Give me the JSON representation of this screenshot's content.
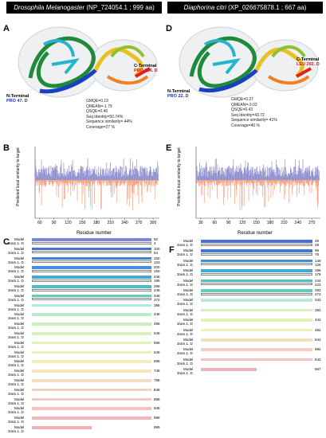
{
  "titles": {
    "left": {
      "organism": "Drosophila Melanogaster",
      "accession": " (NP_724054.1 ; 999 aa)"
    },
    "right": {
      "organism": "Diaphorina citri",
      "accession": " (XP_026675878.1 ; 667 aa)"
    }
  },
  "panels": {
    "A": {
      "letter": "A",
      "n_terminal": "N-Terminal",
      "n_res": "PRO 47. D",
      "c_terminal": "C-Terminal",
      "c_res": "PRO 336. D",
      "stats": [
        "GMQE=0.19",
        "QMEAN=-1.79",
        "QSQE=0.46",
        "Seq Identity=50.74%",
        "Sequence similarity= 44%",
        "Coverage=27 %"
      ]
    },
    "D": {
      "letter": "D",
      "n_terminal": "N-Terminal",
      "n_res": "PRO 22. D",
      "c_terminal": "C-Terminal",
      "c_res": "LEU 292. D",
      "stats": [
        "GMQE=0.27",
        "QMEAN=-3.02",
        "QSQE=0.43",
        "Seq Identity=43.72",
        "Sequence similarity= 41%",
        "Coverage=40 %"
      ]
    },
    "B": {
      "letter": "B",
      "ylabel": "Predicted local similarity to target",
      "xlabel": "Residue number"
    },
    "E": {
      "letter": "E",
      "ylabel": "Predicted local similarity to target",
      "xlabel": "Residue number"
    },
    "C": {
      "letter": "C"
    },
    "F": {
      "letter": "F"
    }
  },
  "chart_data": [
    {
      "type": "bar",
      "panel": "B",
      "xlim": [
        50,
        310
      ],
      "ylim": [
        -1,
        1
      ],
      "xticks": [
        60,
        90,
        120,
        150,
        180,
        210,
        240,
        270,
        300
      ],
      "series": [
        {
          "color": "#8f8fd0"
        },
        {
          "color": "#f0a080"
        }
      ]
    },
    {
      "type": "bar",
      "panel": "E",
      "xlim": [
        20,
        285
      ],
      "ylim": [
        -1,
        1
      ],
      "xticks": [
        30,
        60,
        90,
        120,
        150,
        180,
        210,
        240,
        270
      ],
      "series": [
        {
          "color": "#8f8fd0"
        },
        {
          "color": "#f0a080"
        }
      ]
    }
  ],
  "alignment_C": [
    {
      "row1": "Model",
      "row2": "3ram.1. D",
      "n1": "50",
      "n2": "4",
      "color": "#7a86dc"
    },
    {
      "row1": "Model",
      "row2": "3ram.1. D",
      "n1": "100",
      "n2": "54",
      "color": "#4a6fd8"
    },
    {
      "row1": "Model",
      "row2": "3ram.1. D",
      "n1": "150",
      "n2": "103",
      "color": "#3c7fd6"
    },
    {
      "row1": "Model",
      "row2": "3ram.1. D",
      "n1": "200",
      "n2": "150",
      "color": "#4b8ee0"
    },
    {
      "row1": "Model",
      "row2": "3ram.1. D",
      "n1": "246",
      "n2": "199",
      "color": "#45a7d6"
    },
    {
      "row1": "Model",
      "row2": "3ram.1. D",
      "n1": "298",
      "n2": "248",
      "color": "#4dbbc8"
    },
    {
      "row1": "Model",
      "row2": "3ram.1. D",
      "n1": "348",
      "n2": "272",
      "color": "#5fd0b8"
    },
    {
      "row1": "Model",
      "row2": "3ram.1. D",
      "n1": "398",
      "n2": "",
      "color": "#aeeadc"
    },
    {
      "row1": "Model",
      "row2": "3ram.1. D",
      "n1": "448",
      "n2": "",
      "color": "#b9ecc8"
    },
    {
      "row1": "Model",
      "row2": "3ram.1. D",
      "n1": "498",
      "n2": "",
      "color": "#c9efc0"
    },
    {
      "row1": "Model",
      "row2": "3ram.1. D",
      "n1": "548",
      "n2": "",
      "color": "#d6f1bc"
    },
    {
      "row1": "Model",
      "row2": "3ram.1. D",
      "n1": "598",
      "n2": "",
      "color": "#e2f2b8"
    },
    {
      "row1": "Model",
      "row2": "3ram.1. D",
      "n1": "648",
      "n2": "",
      "color": "#ecf0b6"
    },
    {
      "row1": "Model",
      "row2": "3ram.1. D",
      "n1": "698",
      "n2": "",
      "color": "#f4ecb8"
    },
    {
      "row1": "Model",
      "row2": "3ram.1. D",
      "n1": "748",
      "n2": "",
      "color": "#f6e4bc"
    },
    {
      "row1": "Model",
      "row2": "3ram.1. D",
      "n1": "798",
      "n2": "",
      "color": "#f6dcc0"
    },
    {
      "row1": "Model",
      "row2": "3ram.1. D",
      "n1": "848",
      "n2": "",
      "color": "#f5d2c0"
    },
    {
      "row1": "Model",
      "row2": "3ram.1. D",
      "n1": "898",
      "n2": "",
      "color": "#f4c8bf"
    },
    {
      "row1": "Model",
      "row2": "3ram.1. D",
      "n1": "948",
      "n2": "",
      "color": "#f4c0c0"
    },
    {
      "row1": "Model",
      "row2": "3ram.1. D",
      "n1": "998",
      "n2": "",
      "color": "#f3b8bc"
    },
    {
      "row1": "Model",
      "row2": "3ram.1. D",
      "n1": "999",
      "n2": "",
      "color": "#f2b0b6"
    }
  ],
  "alignment_F": [
    {
      "row1": "Model",
      "row2": "3ram.1. D",
      "n1": "49",
      "n2": "29",
      "color": "#4a6fd8"
    },
    {
      "row1": "Model",
      "row2": "3ram.1. D",
      "n1": "99",
      "n2": "78",
      "color": "#3f78d8"
    },
    {
      "row1": "Model",
      "row2": "3ram.1. D",
      "n1": "149",
      "n2": "128",
      "color": "#3f8fd8"
    },
    {
      "row1": "Model",
      "row2": "3ram.1. D",
      "n1": "196",
      "n2": "178",
      "color": "#45a8d4"
    },
    {
      "row1": "Model",
      "row2": "3ram.1. D",
      "n1": "244",
      "n2": "223",
      "color": "#4dbfc6"
    },
    {
      "row1": "Model",
      "row2": "3ram.1. D",
      "n1": "292",
      "n2": "273",
      "color": "#5ed0b8"
    },
    {
      "row1": "Model",
      "row2": "3ram.1. D",
      "n1": "342",
      "n2": "",
      "color": "#b8ebd2"
    },
    {
      "row1": "Model",
      "row2": "3ram.1. D",
      "n1": "392",
      "n2": "",
      "color": "#d0f0c0"
    },
    {
      "row1": "Model",
      "row2": "3ram.1. D",
      "n1": "442",
      "n2": "",
      "color": "#e2f2b8"
    },
    {
      "row1": "Model",
      "row2": "3ram.1. D",
      "n1": "492",
      "n2": "",
      "color": "#f1eeb6"
    },
    {
      "row1": "Model",
      "row2": "3ram.1. D",
      "n1": "542",
      "n2": "",
      "color": "#f6e0bc"
    },
    {
      "row1": "Model",
      "row2": "3ram.1. D",
      "n1": "592",
      "n2": "",
      "color": "#f5d0c0"
    },
    {
      "row1": "Model",
      "row2": "3ram.1. D",
      "n1": "642",
      "n2": "",
      "color": "#f4c2c0"
    },
    {
      "row1": "Model",
      "row2": "3ram.1. D",
      "n1": "667",
      "n2": "",
      "color": "#f2b2b8"
    }
  ]
}
